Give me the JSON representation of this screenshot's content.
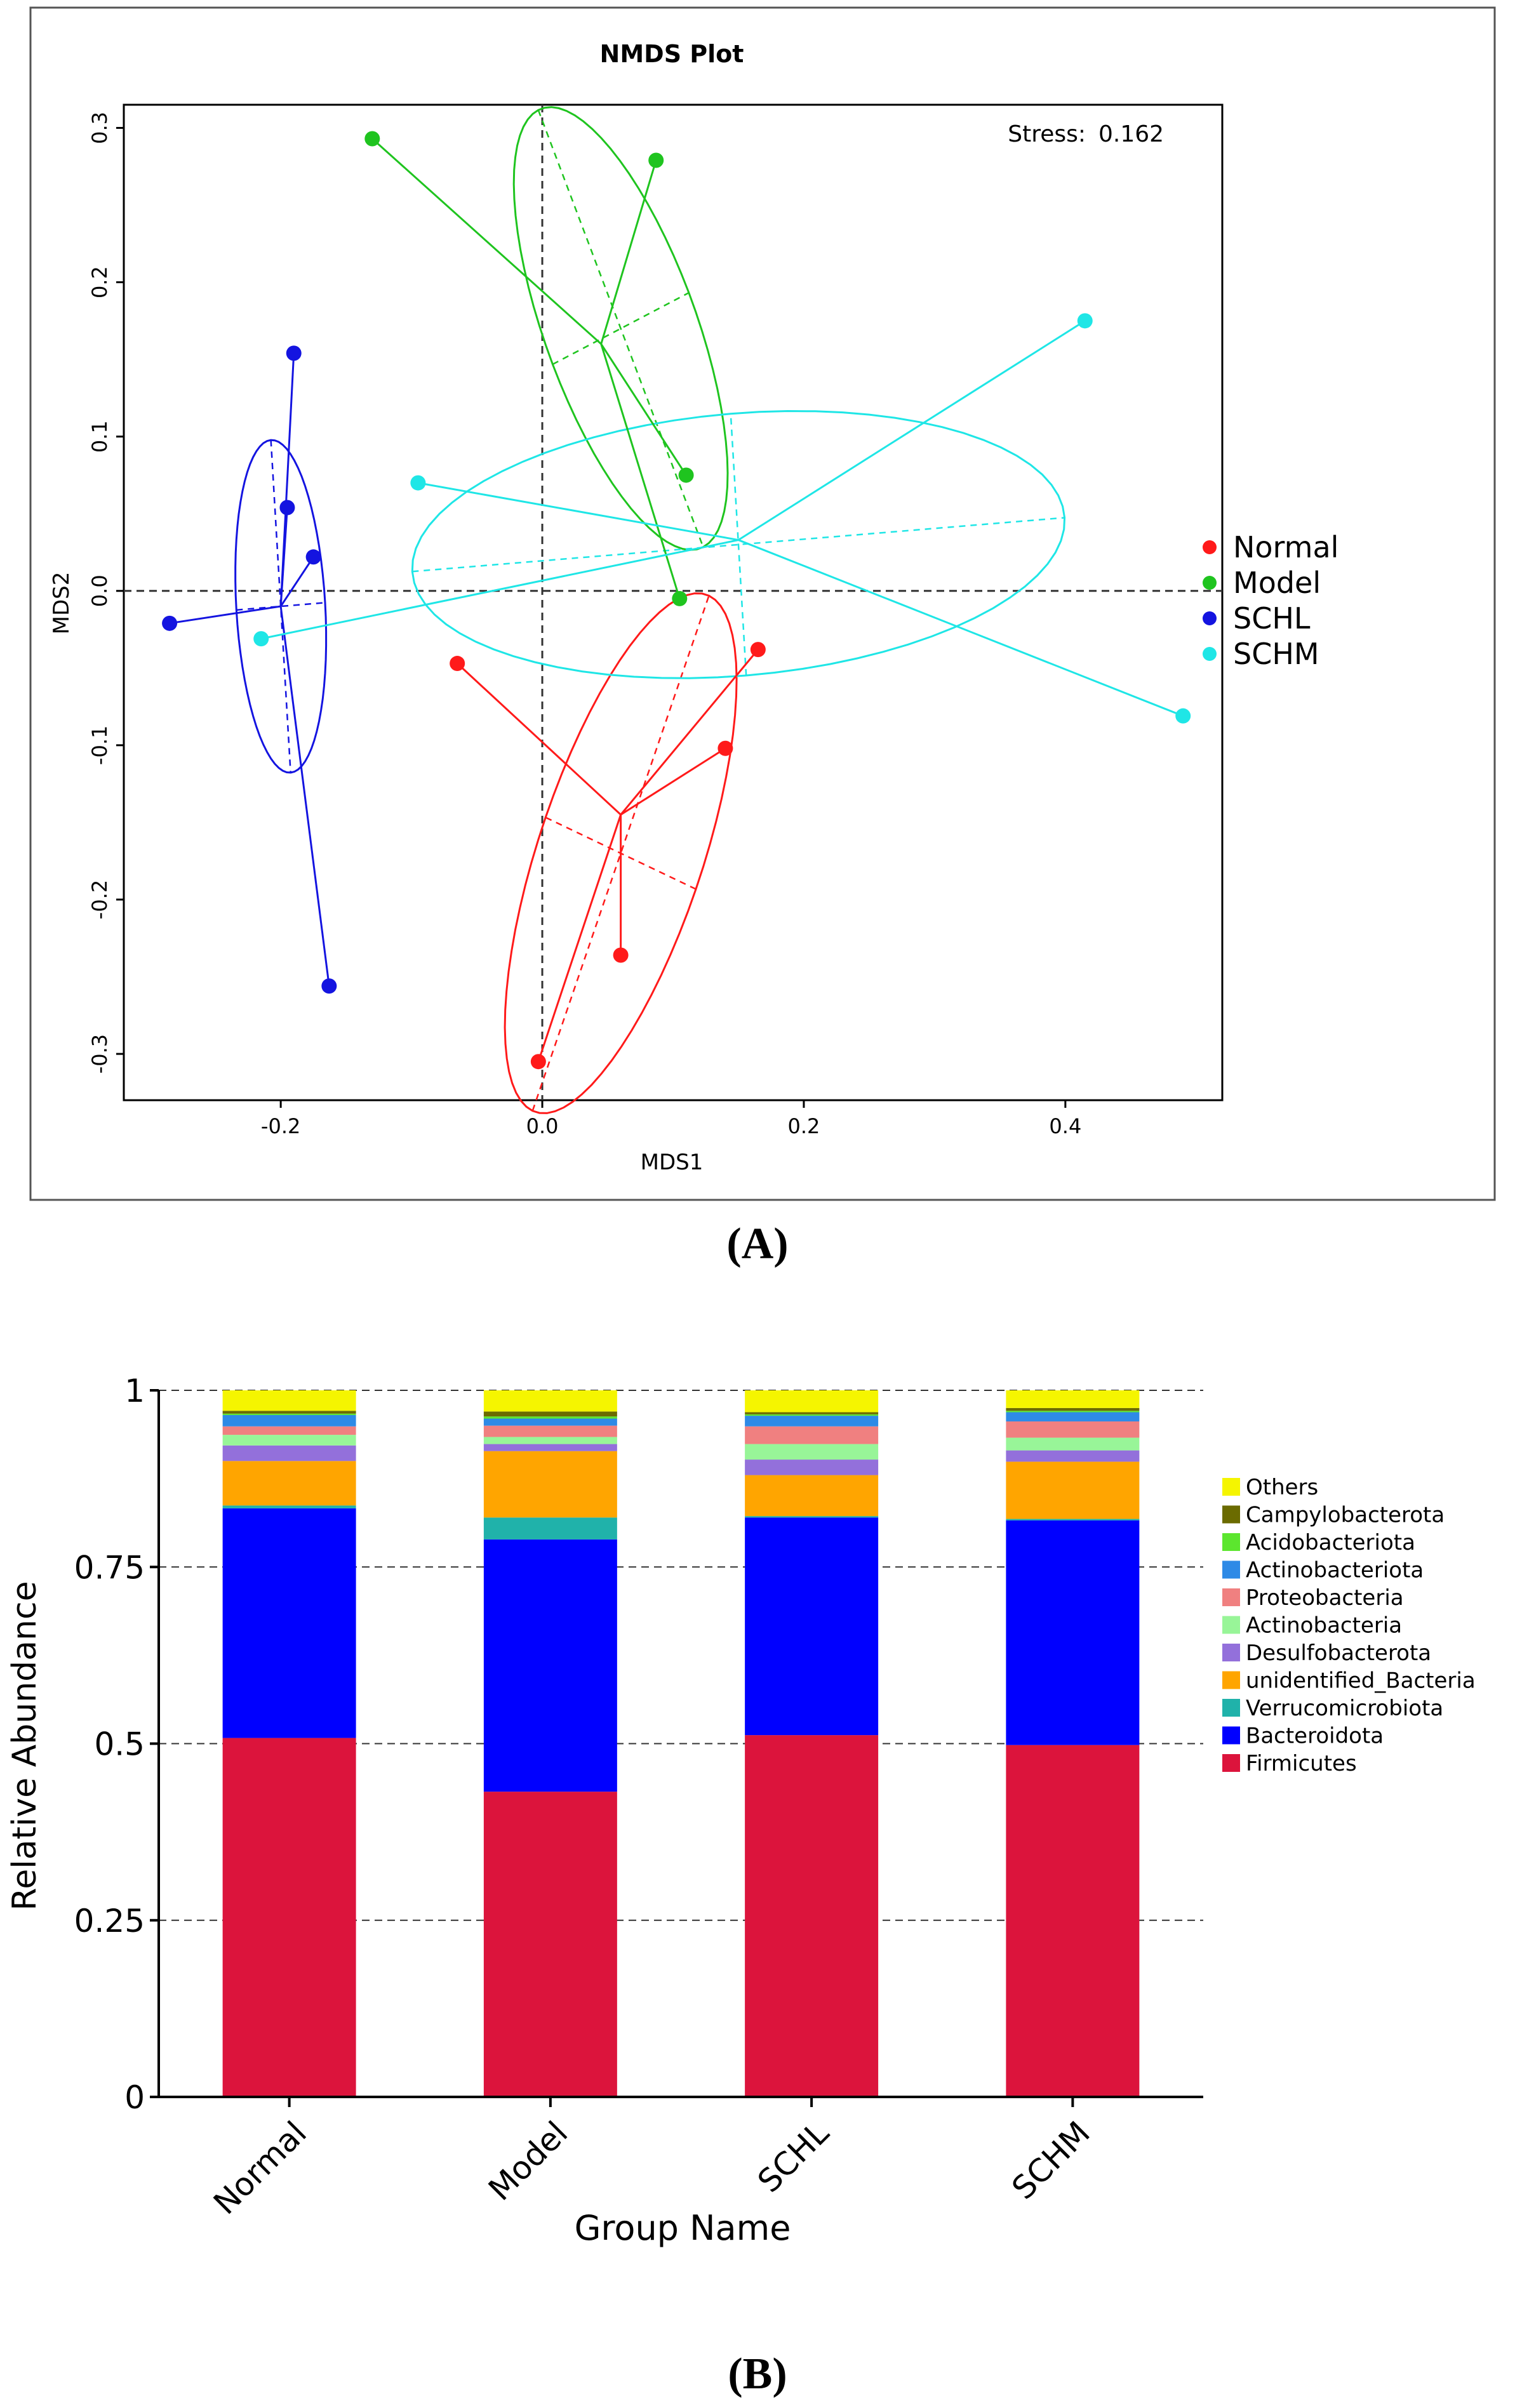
{
  "panel_labels": {
    "a": "(A)",
    "b": "(B)"
  },
  "colors": {
    "Normal": "#ff1a1a",
    "Model": "#1fc41f",
    "SCHL": "#1414e0",
    "SCHM": "#1fe6e6",
    "Others": "#f5f500",
    "Campylobacterota": "#6b6b00",
    "Acidobacteriota": "#5ce62e",
    "Actinobacteriota": "#2e8ae6",
    "Proteobacteria": "#f08080",
    "Actinobacteria": "#98f598",
    "Desulfobacterota": "#9370db",
    "unidentified_Bacteria": "#ffa500",
    "Verrucomicrobiota": "#20b2aa",
    "Bacteroidota": "#0000ff",
    "Firmicutes": "#dc143c"
  },
  "chart_data": [
    {
      "type": "scatter",
      "title": "NMDS Plot",
      "xlabel": "MDS1",
      "ylabel": "MDS2",
      "xlim": [
        -0.32,
        0.52
      ],
      "ylim": [
        -0.33,
        0.315
      ],
      "xticks": [
        -0.2,
        0.0,
        0.2,
        0.4
      ],
      "xtick_labels": [
        "-0.2",
        "0.0",
        "0.2",
        "0.4"
      ],
      "yticks": [
        -0.3,
        -0.2,
        -0.1,
        0.0,
        0.1,
        0.2,
        0.3
      ],
      "ytick_labels": [
        "-0.3",
        "-0.2",
        "-0.1",
        "0.0",
        "0.1",
        "0.2",
        "0.3"
      ],
      "stress_label": "Stress:",
      "stress_value": "0.162",
      "legend": [
        "Normal",
        "Model",
        "SCHL",
        "SCHM"
      ],
      "legend_position": "right",
      "series": [
        {
          "name": "Normal",
          "centroid": [
            0.06,
            -0.145
          ],
          "points": [
            [
              -0.065,
              -0.047
            ],
            [
              0.165,
              -0.038
            ],
            [
              0.14,
              -0.102
            ],
            [
              0.06,
              -0.236
            ],
            [
              -0.003,
              -0.305
            ]
          ],
          "ellipse": {
            "center": [
              0.06,
              -0.17
            ],
            "semi_major": 0.18,
            "semi_minor": 0.062,
            "angle_deg": 68
          }
        },
        {
          "name": "Model",
          "centroid": [
            0.045,
            0.16
          ],
          "points": [
            [
              -0.13,
              0.293
            ],
            [
              0.087,
              0.279
            ],
            [
              0.11,
              0.075
            ],
            [
              0.105,
              -0.005
            ]
          ],
          "ellipse": {
            "center": [
              0.06,
              0.17
            ],
            "semi_major": 0.155,
            "semi_minor": 0.057,
            "angle_deg": -66
          }
        },
        {
          "name": "SCHL",
          "centroid": [
            -0.2,
            -0.01
          ],
          "points": [
            [
              -0.19,
              0.154
            ],
            [
              -0.195,
              0.054
            ],
            [
              -0.175,
              0.022
            ],
            [
              -0.285,
              -0.021
            ],
            [
              -0.163,
              -0.256
            ]
          ],
          "ellipse": {
            "center": [
              -0.2,
              -0.01
            ],
            "semi_major": 0.108,
            "semi_minor": 0.034,
            "angle_deg": -86
          }
        },
        {
          "name": "SCHM",
          "centroid": [
            0.15,
            0.033
          ],
          "points": [
            [
              0.415,
              0.175
            ],
            [
              -0.095,
              0.07
            ],
            [
              -0.215,
              -0.031
            ],
            [
              0.49,
              -0.081
            ]
          ],
          "ellipse": {
            "center": [
              0.15,
              0.03
            ],
            "semi_major": 0.25,
            "semi_minor": 0.085,
            "angle_deg": 4
          }
        }
      ]
    },
    {
      "type": "bar",
      "stacked": true,
      "xlabel": "Group Name",
      "ylabel": "Relative Abundance",
      "ylim": [
        0,
        1
      ],
      "yticks": [
        0,
        0.25,
        0.5,
        0.75,
        1
      ],
      "ytick_labels": [
        "0",
        "0.25",
        "0.5",
        "0.75",
        "1"
      ],
      "categories": [
        "Normal",
        "Model",
        "SCHL",
        "SCHM"
      ],
      "legend_position": "right",
      "legend": [
        "Others",
        "Campylobacterota",
        "Acidobacteriota",
        "Actinobacteriota",
        "Proteobacteria",
        "Actinobacteria",
        "Desulfobacterota",
        "unidentified_Bacteria",
        "Verrucomicrobiota",
        "Bacteroidota",
        "Firmicutes"
      ],
      "series": [
        {
          "name": "Firmicutes",
          "values": [
            0.508,
            0.432,
            0.512,
            0.498
          ]
        },
        {
          "name": "Bacteroidota",
          "values": [
            0.325,
            0.357,
            0.308,
            0.318
          ]
        },
        {
          "name": "Verrucomicrobiota",
          "values": [
            0.004,
            0.031,
            0.002,
            0.002
          ]
        },
        {
          "name": "unidentified_Bacteria",
          "values": [
            0.063,
            0.094,
            0.058,
            0.081
          ]
        },
        {
          "name": "Desulfobacterota",
          "values": [
            0.022,
            0.01,
            0.022,
            0.016
          ]
        },
        {
          "name": "Actinobacteria",
          "values": [
            0.015,
            0.01,
            0.022,
            0.018
          ]
        },
        {
          "name": "Proteobacteria",
          "values": [
            0.012,
            0.016,
            0.025,
            0.023
          ]
        },
        {
          "name": "Actinobacteriota",
          "values": [
            0.016,
            0.01,
            0.015,
            0.013
          ]
        },
        {
          "name": "Acidobacteriota",
          "values": [
            0.002,
            0.003,
            0.002,
            0.002
          ]
        },
        {
          "name": "Campylobacterota",
          "values": [
            0.004,
            0.007,
            0.003,
            0.004
          ]
        },
        {
          "name": "Others",
          "values": [
            0.029,
            0.03,
            0.031,
            0.025
          ]
        }
      ]
    }
  ]
}
